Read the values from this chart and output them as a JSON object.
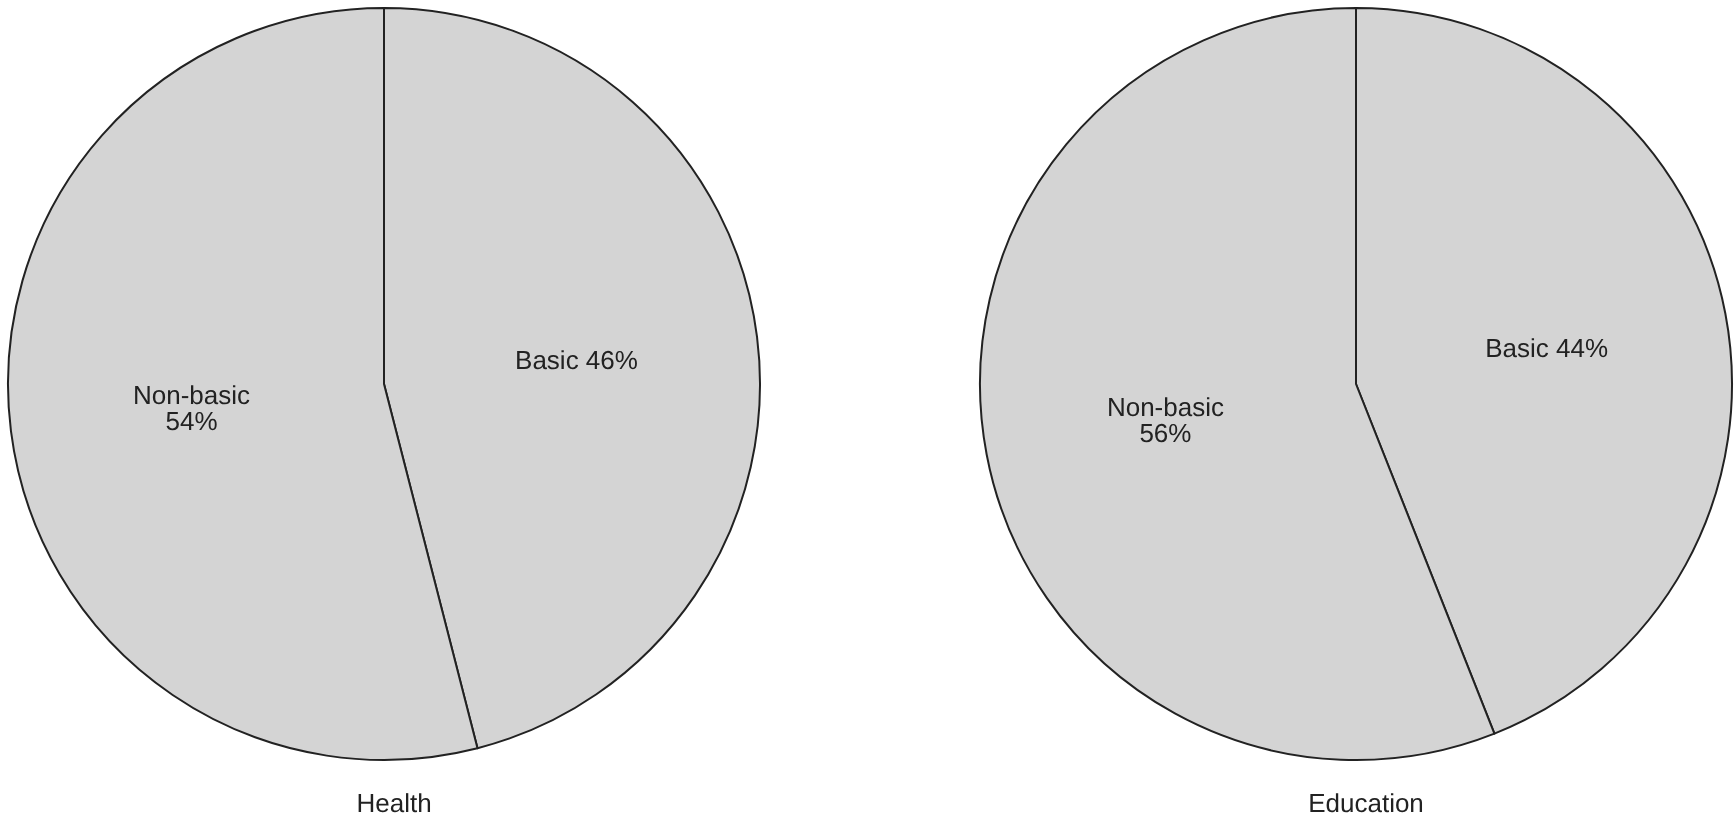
{
  "chart_data": [
    {
      "type": "pie",
      "title": "Health",
      "categories": [
        "Basic",
        "Non-basic"
      ],
      "values": [
        46,
        54
      ],
      "value_labels": [
        "46%",
        "54%"
      ],
      "colors": [
        "#d4d4d4",
        "#d4d4d4"
      ],
      "legend": false
    },
    {
      "type": "pie",
      "title": "Education",
      "categories": [
        "Basic",
        "Non-basic"
      ],
      "values": [
        44,
        56
      ],
      "value_labels": [
        "44%",
        "56%"
      ],
      "colors": [
        "#d4d4d4",
        "#d4d4d4"
      ],
      "legend": false
    }
  ]
}
